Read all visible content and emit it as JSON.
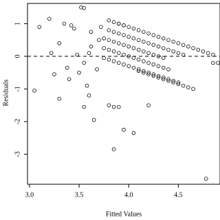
{
  "chart_data": {
    "type": "scatter",
    "x_label": "Fitted Values",
    "y_label": "Residuals",
    "xlim": [
      2.98,
      4.92
    ],
    "ylim": [
      -3.92,
      1.62
    ],
    "xticks": [
      {
        "value": 3,
        "label": "3.0"
      },
      3.5,
      {
        "value": 4,
        "label": "4.0"
      },
      4.5
    ],
    "yticks": [
      -3,
      -2,
      -1,
      0,
      1
    ],
    "hline": 0,
    "x": [
      3.8,
      3.85,
      3.9,
      3.95,
      4,
      4.05,
      4.1,
      4.15,
      4.2,
      4.25,
      4.3,
      4.35,
      4.4,
      4.45,
      4.5,
      4.55,
      4.6,
      4.65,
      4.7,
      4.75,
      4.8,
      4.85,
      3.8,
      3.85,
      3.9,
      3.95,
      4,
      4.05,
      4.1,
      4.15,
      4.2,
      4.25,
      4.3,
      4.35,
      4.4,
      4.45,
      4.5,
      4.55,
      3.75,
      3.8,
      3.85,
      3.9,
      3.95,
      4,
      4.05,
      4.1,
      4.15,
      4.2,
      4.25,
      4.3,
      4.35,
      3.75,
      3.8,
      3.85,
      3.9,
      3.95,
      4,
      4.05,
      4.1,
      4.15,
      4.2,
      4.25,
      4.3,
      4.35,
      4.4,
      3.75,
      3.8,
      3.85,
      3.9,
      3.95,
      4,
      4.05,
      4.1,
      4.15,
      4.2,
      4.25,
      4.3,
      4.35,
      4.4,
      4.45,
      4.5,
      4.1,
      4.15,
      4.2,
      4.25,
      4.3,
      4.35,
      4.4,
      4.45,
      4.5,
      4.55,
      4.6,
      4.65,
      3.05,
      3.1,
      3.2,
      3.22,
      3.25,
      3.3,
      3.3,
      3.35,
      3.38,
      3.4,
      3.42,
      3.45,
      3.48,
      3.5,
      3.52,
      3.55,
      3.55,
      3.58,
      3.6,
      3.62,
      3.65,
      3.68,
      3.72,
      3.8,
      3.85,
      3.9,
      3.95,
      4.05,
      3.85,
      4.2,
      4.78,
      4.85,
      4.9,
      3.9,
      3.95,
      3.6,
      3.62,
      3.55,
      3.7
    ],
    "values": [
      1.1,
      1.05,
      1,
      0.95,
      0.9,
      0.85,
      0.8,
      0.75,
      0.7,
      0.65,
      0.6,
      0.55,
      0.5,
      0.45,
      0.4,
      0.35,
      0.3,
      0.25,
      0.2,
      0.15,
      0.1,
      0.05,
      0.8,
      0.75,
      0.7,
      0.65,
      0.6,
      0.55,
      0.5,
      0.45,
      0.4,
      0.35,
      0.3,
      0.25,
      0.2,
      0.15,
      0.1,
      0.05,
      0.55,
      0.5,
      0.45,
      0.4,
      0.35,
      0.3,
      0.25,
      0.2,
      0.15,
      0.1,
      0.05,
      0,
      -0.05,
      0.25,
      0.2,
      0.15,
      0.1,
      0.05,
      0,
      -0.05,
      -0.1,
      -0.15,
      -0.2,
      -0.25,
      -0.3,
      -0.35,
      -0.4,
      -0.05,
      -0.1,
      -0.15,
      -0.2,
      -0.25,
      -0.3,
      -0.35,
      -0.4,
      -0.45,
      -0.5,
      -0.55,
      -0.6,
      -0.65,
      -0.7,
      -0.75,
      -0.8,
      -0.45,
      -0.5,
      -0.55,
      -0.6,
      -0.65,
      -0.7,
      -0.75,
      -0.8,
      -0.85,
      -0.9,
      -0.95,
      -1,
      -1.05,
      0.9,
      1.15,
      0.1,
      -0.55,
      0.4,
      -1.3,
      1,
      -0.35,
      -0.7,
      0.95,
      0.85,
      0.05,
      -0.5,
      1.5,
      1.48,
      -1.55,
      -0.9,
      -1.2,
      0.75,
      -1.95,
      -0.4,
      0.9,
      -1.5,
      -1.55,
      -1.55,
      -2.25,
      -2.35,
      -2.85,
      -1.5,
      -3.75,
      -0.2,
      -0.2,
      1,
      0.95,
      0.1,
      0.3,
      -0.2,
      0.5
    ],
    "color": "#000000"
  }
}
